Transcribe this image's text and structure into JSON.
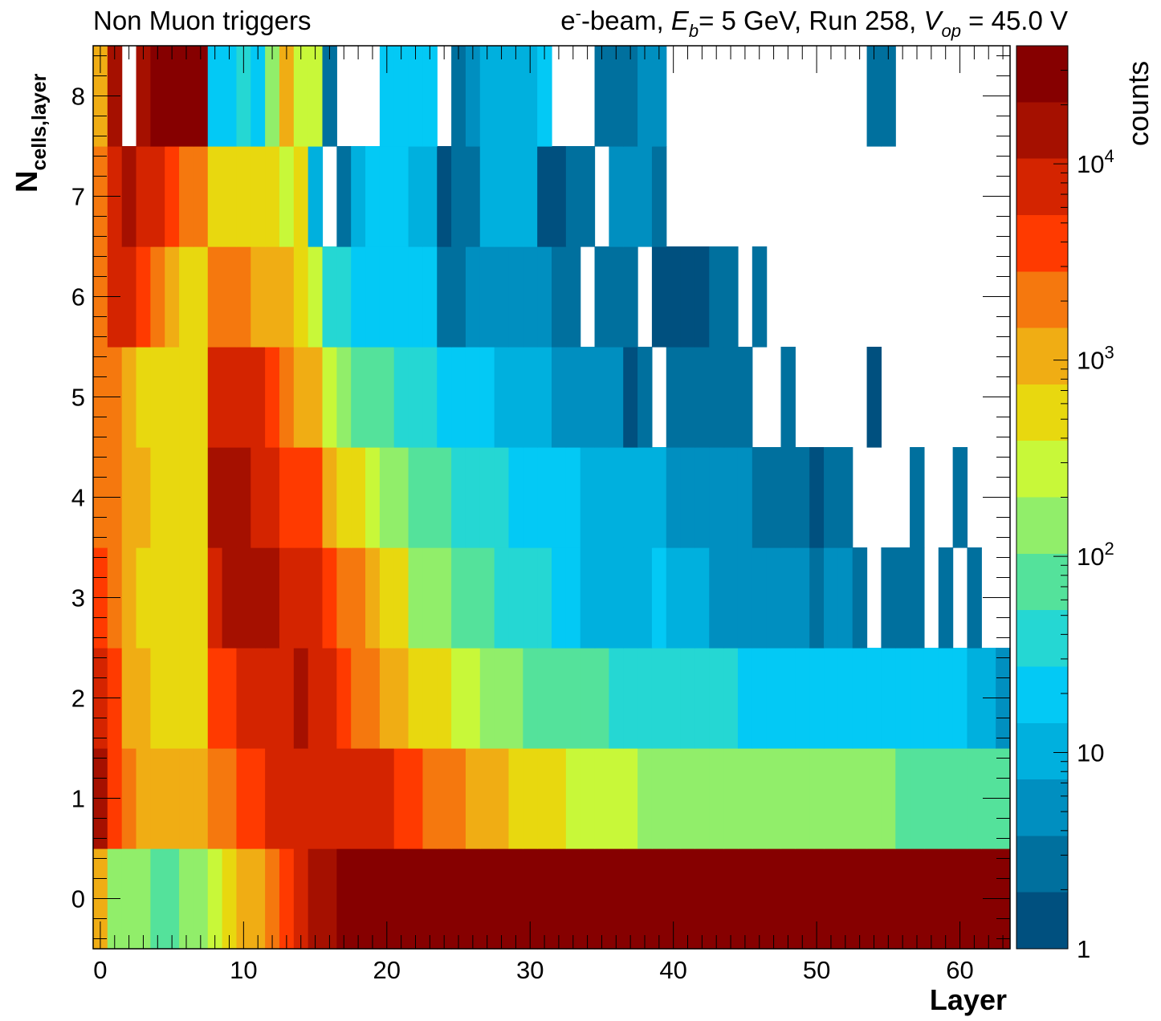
{
  "chart_data": {
    "type": "heatmap",
    "title_left": "Non Muon triggers",
    "title_right": {
      "p1": "e",
      "p1_sup": "-",
      "p2": "-beam, ",
      "eb_sym": "E",
      "eb_sub": "b",
      "p3": "= 5 GeV, Run 258, ",
      "v_sym": "V",
      "v_sub": "op",
      "p4": " = 45.0 V"
    },
    "xlabel": "Layer",
    "ylabel": "N",
    "ylabel_sub": "cells,layer",
    "zlabel": "counts",
    "x_range": [
      -0.5,
      63.5
    ],
    "y_range": [
      -0.5,
      8.5
    ],
    "x_ticks": [
      0,
      10,
      20,
      30,
      40,
      50,
      60
    ],
    "y_ticks": [
      0,
      1,
      2,
      3,
      4,
      5,
      6,
      7,
      8
    ],
    "z_scale": "log",
    "z_range": [
      1,
      40000
    ],
    "z_ticks": [
      {
        "value": 1,
        "base": "1",
        "exp": ""
      },
      {
        "value": 10,
        "base": "10",
        "exp": ""
      },
      {
        "value": 100,
        "base": "10",
        "exp": "2"
      },
      {
        "value": 1000,
        "base": "10",
        "exp": "3"
      },
      {
        "value": 10000,
        "base": "10",
        "exp": "4"
      }
    ],
    "colormap": [
      "#00507f",
      "#00709e",
      "#008fc0",
      "#00b0de",
      "#03c9f5",
      "#25d7d3",
      "#54e29b",
      "#91ee6a",
      "#c8f839",
      "#e8d80f",
      "#f0ad14",
      "#f5780e",
      "#ff3a00",
      "#d42400",
      "#a51000",
      "#860000"
    ],
    "rows_log10": [
      [
        3.0,
        2.2,
        2.2,
        2.2,
        2.0,
        2.0,
        2.1,
        2.2,
        2.5,
        2.7,
        2.9,
        3.1,
        3.3,
        3.6,
        3.9,
        4.1,
        4.3,
        4.4,
        4.5,
        4.6,
        4.6,
        4.6,
        4.6,
        4.6,
        4.6,
        4.6,
        4.6,
        4.6,
        4.6,
        4.6,
        4.6,
        4.6,
        4.6,
        4.6,
        4.6,
        4.6,
        4.6,
        4.6,
        4.6,
        4.6,
        4.6,
        4.6,
        4.6,
        4.6,
        4.6,
        4.6,
        4.6,
        4.6,
        4.6,
        4.6,
        4.6,
        4.6,
        4.6,
        4.6,
        4.6,
        4.6,
        4.6,
        4.6,
        4.6,
        4.6,
        4.6,
        4.6,
        4.6,
        4.6
      ],
      [
        4.1,
        3.5,
        3.2,
        3.1,
        3.1,
        3.0,
        2.9,
        2.9,
        3.2,
        3.3,
        3.5,
        3.6,
        3.8,
        3.9,
        4.0,
        4.0,
        4.0,
        4.0,
        4.0,
        3.9,
        3.8,
        3.7,
        3.5,
        3.4,
        3.3,
        3.2,
        3.0,
        2.9,
        2.9,
        2.8,
        2.7,
        2.6,
        2.6,
        2.5,
        2.5,
        2.4,
        2.4,
        2.4,
        2.3,
        2.3,
        2.3,
        2.3,
        2.3,
        2.2,
        2.2,
        2.2,
        2.2,
        2.2,
        2.2,
        2.2,
        2.1,
        2.1,
        2.1,
        2.1,
        2.1,
        2.1,
        2.0,
        2.0,
        2.0,
        2.0,
        2.0,
        2.0,
        2.0,
        2.0
      ],
      [
        4.0,
        3.5,
        3.1,
        2.9,
        2.8,
        2.8,
        2.7,
        2.7,
        3.5,
        3.7,
        3.8,
        3.9,
        4.0,
        4.0,
        4.1,
        4.0,
        3.8,
        3.6,
        3.4,
        3.2,
        3.0,
        2.9,
        2.8,
        2.7,
        2.6,
        2.5,
        2.4,
        2.3,
        2.2,
        2.1,
        2.0,
        2.0,
        1.9,
        1.9,
        1.8,
        1.8,
        1.7,
        1.7,
        1.6,
        1.6,
        1.6,
        1.6,
        1.5,
        1.5,
        1.5,
        1.4,
        1.4,
        1.4,
        1.4,
        1.4,
        1.3,
        1.3,
        1.3,
        1.3,
        1.3,
        1.2,
        1.2,
        1.2,
        1.2,
        1.2,
        1.2,
        1.1,
        1.1,
        0.7
      ],
      [
        3.7,
        3.3,
        3.1,
        2.8,
        2.7,
        2.7,
        2.7,
        2.7,
        4.0,
        4.1,
        4.1,
        4.1,
        4.1,
        4.0,
        3.9,
        3.8,
        3.6,
        3.3,
        3.2,
        3.0,
        2.7,
        2.6,
        2.3,
        2.2,
        2.2,
        2.0,
        1.9,
        1.8,
        1.7,
        1.6,
        1.5,
        1.5,
        1.3,
        1.2,
        1.1,
        1.0,
        1.0,
        1.0,
        0.9,
        1.2,
        1.1,
        1.0,
        1.0,
        0.8,
        0.8,
        0.7,
        0.7,
        0.6,
        0.6,
        0.7,
        0.5,
        0.7,
        0.6,
        0.5,
        null,
        0.3,
        0.3,
        0.3,
        null,
        0.3,
        null,
        0.3,
        null,
        null
      ],
      [
        3.4,
        3.2,
        3.0,
        2.9,
        2.7,
        2.6,
        2.6,
        2.6,
        4.2,
        4.2,
        4.1,
        4.0,
        3.8,
        3.7,
        3.6,
        3.5,
        3.0,
        2.8,
        2.6,
        2.5,
        2.3,
        2.2,
        2.0,
        1.9,
        1.8,
        1.7,
        1.6,
        1.6,
        1.5,
        1.4,
        1.3,
        1.3,
        1.2,
        1.2,
        1.1,
        1.0,
        1.0,
        1.0,
        0.9,
        0.9,
        0.8,
        0.8,
        0.7,
        0.7,
        0.7,
        0.6,
        0.5,
        0.5,
        0.5,
        0.5,
        0.2,
        0.4,
        0.3,
        null,
        null,
        null,
        null,
        0.3,
        null,
        null,
        0.3,
        null,
        null,
        null
      ],
      [
        3.3,
        3.4,
        3.0,
        2.8,
        2.7,
        2.6,
        2.6,
        2.6,
        3.9,
        3.9,
        3.8,
        3.8,
        3.6,
        3.4,
        3.1,
        2.9,
        2.4,
        2.1,
        2.0,
        1.8,
        1.8,
        1.7,
        1.6,
        1.6,
        1.4,
        1.3,
        1.2,
        1.2,
        1.1,
        1.1,
        1.0,
        0.9,
        0.8,
        0.7,
        0.8,
        0.6,
        0.6,
        0.2,
        0.4,
        null,
        0.3,
        0.3,
        0.4,
        0.3,
        0.3,
        0.3,
        null,
        null,
        0.3,
        null,
        null,
        null,
        null,
        null,
        0.2,
        null,
        null,
        null,
        null,
        null,
        null,
        null,
        null,
        null
      ],
      [
        3.2,
        3.8,
        3.8,
        3.5,
        3.3,
        3.0,
        2.8,
        2.8,
        3.4,
        3.4,
        3.2,
        3.1,
        3.1,
        2.9,
        2.8,
        2.5,
        1.5,
        1.5,
        1.4,
        1.4,
        1.4,
        1.3,
        1.3,
        1.3,
        0.3,
        0.3,
        0.8,
        0.7,
        0.8,
        0.7,
        0.7,
        0.6,
        0.4,
        0.4,
        null,
        0.3,
        0.3,
        0.3,
        null,
        0.1,
        0.1,
        0.1,
        0.1,
        0.3,
        0.3,
        null,
        0.3,
        null,
        null,
        null,
        null,
        null,
        null,
        null,
        null,
        null,
        null,
        null,
        null,
        null,
        null,
        null,
        null,
        null
      ],
      [
        3.2,
        4.0,
        4.1,
        4.0,
        4.0,
        3.5,
        3.3,
        3.2,
        2.7,
        2.7,
        2.6,
        2.6,
        2.6,
        2.5,
        2.7,
        1.1,
        null,
        0.4,
        1.1,
        1.3,
        1.3,
        1.2,
        1.1,
        1.0,
        0.2,
        0.3,
        0.3,
        1.0,
        1.0,
        0.9,
        0.9,
        0.2,
        0.2,
        0.3,
        0.5,
        null,
        0.6,
        0.7,
        0.7,
        0.3,
        null,
        null,
        null,
        null,
        null,
        null,
        null,
        null,
        null,
        null,
        null,
        null,
        null,
        null,
        null,
        null,
        null,
        null,
        null,
        null,
        null,
        null,
        null,
        null
      ],
      [
        3.0,
        4.1,
        null,
        4.3,
        4.4,
        4.6,
        4.6,
        4.6,
        1.4,
        1.4,
        1.5,
        1.4,
        2.2,
        3.1,
        2.4,
        2.5,
        0.4,
        null,
        null,
        null,
        1.3,
        1.3,
        1.3,
        1.2,
        null,
        0.3,
        0.7,
        0.9,
        1.0,
        0.9,
        0.9,
        1.3,
        null,
        null,
        null,
        0.3,
        0.5,
        0.4,
        0.6,
        0.8,
        null,
        null,
        null,
        null,
        null,
        null,
        null,
        null,
        null,
        null,
        null,
        null,
        null,
        null,
        0.3,
        0.3,
        null,
        null,
        null,
        null,
        null,
        null,
        null,
        null
      ]
    ]
  }
}
